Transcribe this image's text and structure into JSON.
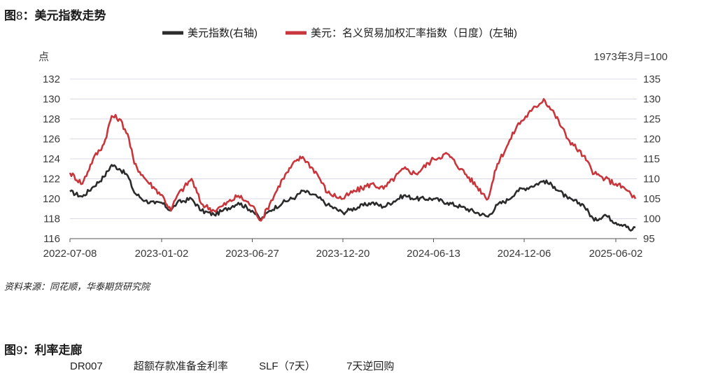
{
  "figure": {
    "prefix": "图",
    "number": "8",
    "sep": "：",
    "title": "美元指数走势"
  },
  "source": "资料来源：同花顺，华泰期货研究院",
  "next_figure": {
    "prefix": "图",
    "number": "9",
    "sep": "：",
    "title": "利率走廊",
    "legend_items": [
      "DR007",
      "超额存款准备金利率",
      "SLF（7天）",
      "7天逆回购"
    ]
  },
  "chart_data": {
    "type": "line",
    "left_unit": "点",
    "right_unit": "1973年3月=100",
    "x_tick_labels": [
      "2022-07-08",
      "2023-01-02",
      "2023-06-27",
      "2023-12-20",
      "2024-06-13",
      "2024-12-06",
      "2025-06-02"
    ],
    "left_axis": {
      "range": [
        116,
        132
      ],
      "ticks": [
        116,
        118,
        120,
        122,
        124,
        126,
        128,
        130,
        132
      ]
    },
    "right_axis": {
      "range": [
        95,
        135
      ],
      "ticks": [
        95,
        100,
        105,
        110,
        115,
        120,
        125,
        130,
        135
      ]
    },
    "grid": true,
    "legend_position": "top",
    "series": [
      {
        "name": "美元指数(右轴)",
        "axis": "right",
        "color": "#2b2b2b",
        "x": [
          "2022-07-08",
          "2022-08-01",
          "2022-08-22",
          "2022-09-12",
          "2022-09-27",
          "2022-10-12",
          "2022-10-28",
          "2022-11-10",
          "2022-12-01",
          "2022-12-20",
          "2023-01-02",
          "2023-01-20",
          "2023-02-01",
          "2023-03-01",
          "2023-03-20",
          "2023-04-14",
          "2023-05-01",
          "2023-05-31",
          "2023-06-27",
          "2023-07-14",
          "2023-07-31",
          "2023-08-25",
          "2023-09-20",
          "2023-10-03",
          "2023-10-31",
          "2023-11-20",
          "2023-12-20",
          "2024-01-02",
          "2024-02-14",
          "2024-03-08",
          "2024-04-16",
          "2024-05-10",
          "2024-06-13",
          "2024-07-10",
          "2024-08-05",
          "2024-09-27",
          "2024-10-15",
          "2024-11-05",
          "2024-11-22",
          "2024-12-20",
          "2025-01-13",
          "2025-02-03",
          "2025-03-01",
          "2025-03-31",
          "2025-04-21",
          "2025-05-12",
          "2025-06-02",
          "2025-06-20",
          "2025-07-01",
          "2025-07-10"
        ],
        "values": [
          106.8,
          105.5,
          108.0,
          110.5,
          113.5,
          112.5,
          110.8,
          106.5,
          104.5,
          103.8,
          104.0,
          102.0,
          104.0,
          105.0,
          102.0,
          101.0,
          102.0,
          104.0,
          102.0,
          99.8,
          102.0,
          104.0,
          105.5,
          107.0,
          105.5,
          103.5,
          101.5,
          102.2,
          104.0,
          103.0,
          105.8,
          105.0,
          105.0,
          104.0,
          103.0,
          100.5,
          103.5,
          104.7,
          107.0,
          108.1,
          109.5,
          108.0,
          105.0,
          103.5,
          99.5,
          101.0,
          99.0,
          98.5,
          97.0,
          97.8
        ]
      },
      {
        "name": "美元：名义贸易加权汇率指数（日度）(左轴)",
        "axis": "left",
        "color": "#c8363b",
        "x": [
          "2022-07-08",
          "2022-08-01",
          "2022-08-22",
          "2022-09-12",
          "2022-09-27",
          "2022-10-12",
          "2022-10-28",
          "2022-11-10",
          "2022-12-01",
          "2022-12-20",
          "2023-01-02",
          "2023-01-20",
          "2023-02-01",
          "2023-03-01",
          "2023-03-20",
          "2023-04-14",
          "2023-05-01",
          "2023-05-31",
          "2023-06-27",
          "2023-07-14",
          "2023-07-31",
          "2023-08-25",
          "2023-09-20",
          "2023-10-03",
          "2023-10-31",
          "2023-11-20",
          "2023-12-20",
          "2024-01-02",
          "2024-02-14",
          "2024-03-08",
          "2024-04-16",
          "2024-05-10",
          "2024-06-13",
          "2024-07-10",
          "2024-08-05",
          "2024-09-27",
          "2024-10-15",
          "2024-11-05",
          "2024-11-22",
          "2024-12-20",
          "2025-01-13",
          "2025-02-03",
          "2025-03-01",
          "2025-03-31",
          "2025-04-21",
          "2025-05-12",
          "2025-06-02",
          "2025-06-20",
          "2025-07-01",
          "2025-07-10"
        ],
        "values": [
          122.6,
          121.5,
          124.0,
          125.5,
          128.3,
          128.0,
          126.5,
          123.5,
          122.0,
          121.0,
          120.4,
          118.8,
          120.3,
          122.0,
          119.5,
          118.8,
          119.3,
          120.3,
          119.3,
          117.8,
          119.5,
          122.0,
          123.8,
          124.2,
          122.5,
          120.6,
          120.0,
          120.5,
          121.5,
          121.0,
          123.0,
          122.5,
          124.0,
          124.5,
          123.0,
          120.0,
          123.5,
          125.5,
          127.3,
          128.8,
          130.0,
          128.5,
          126.0,
          124.3,
          122.5,
          122.0,
          121.5,
          121.0,
          120.5,
          120.0
        ]
      }
    ]
  }
}
